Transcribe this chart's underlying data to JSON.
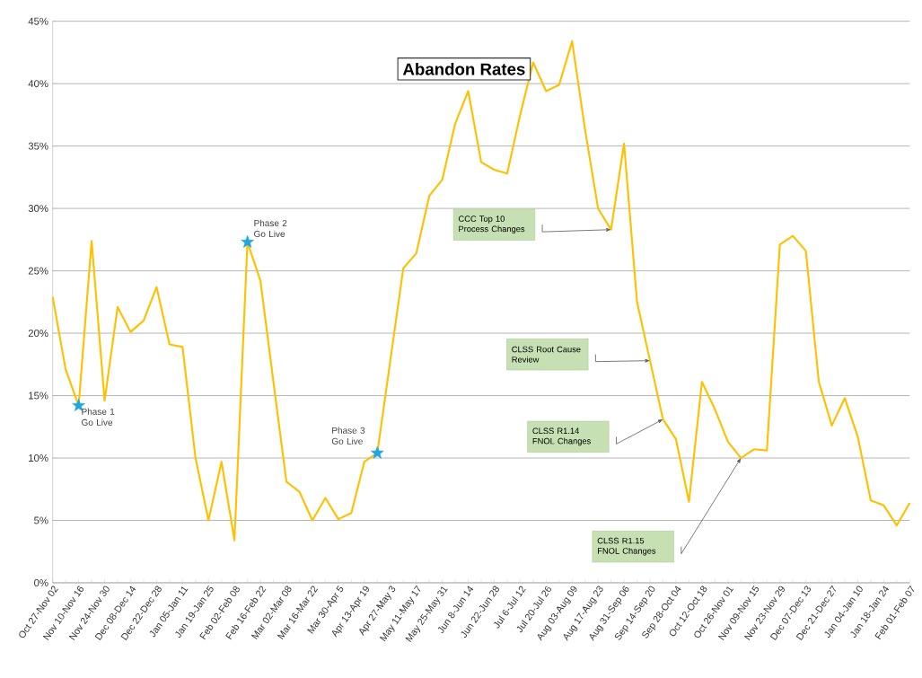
{
  "chart_data": {
    "type": "line",
    "title": "Abandon Rates",
    "categories": [
      "Oct 27-Nov 02",
      null,
      "Nov 10-Nov 16",
      null,
      "Nov 24-Nov 30",
      null,
      "Dec 08-Dec 14",
      null,
      "Dec 22-Dec 28",
      null,
      "Jan 05-Jan 11",
      null,
      "Jan 19-Jan 25",
      null,
      "Feb 02-Feb 08",
      null,
      "Feb 16-Feb 22",
      null,
      "Mar 02-Mar 08",
      null,
      "Mar 16-Mar 22",
      null,
      "Mar 30-Apr 5",
      null,
      "Apr 13-Apr 19",
      null,
      "Apr 27-May 3",
      null,
      "May 11-May 17",
      null,
      "May 25-May 31",
      null,
      "Jun 8-Jun 14",
      null,
      "Jun 22-Jun 28",
      null,
      "Jul 6-Jul 12",
      null,
      "Jul 20-Jul 26",
      null,
      "Aug 03-Aug 09",
      null,
      "Aug 17-Aug 23",
      null,
      "Aug 31-Sep 06",
      null,
      "Sep 14-Sep 20",
      null,
      "Sep 28-Oct 04",
      null,
      "Oct 12-Oct 18",
      null,
      "Oct 26-Nov 01",
      null,
      "Nov 09-Nov 15",
      null,
      "Nov 23-Nov 29",
      null,
      "Dec 07-Dec 13",
      null,
      "Dec 21-Dec 27",
      null,
      "Jan 04-Jan 10",
      null,
      "Jan 18-Jan 24",
      null,
      "Feb 01-Feb 07"
    ],
    "values": [
      22.9,
      17.1,
      14.2,
      27.4,
      14.6,
      22.1,
      20.1,
      21.0,
      23.7,
      19.1,
      18.9,
      10.0,
      5.0,
      9.7,
      3.4,
      27.3,
      24.2,
      16.1,
      8.1,
      7.3,
      5.0,
      6.8,
      5.1,
      5.6,
      9.7,
      10.4,
      17.8,
      25.2,
      26.4,
      31.0,
      32.3,
      36.8,
      39.4,
      33.7,
      33.1,
      32.8,
      37.5,
      41.7,
      39.4,
      39.9,
      43.4,
      36.3,
      30.0,
      28.3,
      35.2,
      22.5,
      17.8,
      13.1,
      11.5,
      6.5,
      16.1,
      13.9,
      11.3,
      10.0,
      10.7,
      10.6,
      27.1,
      27.8,
      26.6,
      16.1,
      12.6,
      14.8,
      11.7,
      6.6,
      6.2,
      4.6,
      6.4
    ],
    "color": "#ffc000",
    "ylim": [
      0,
      45
    ],
    "yticks": [
      {
        "value": 0,
        "label": "0%"
      },
      {
        "value": 5,
        "label": "5%"
      },
      {
        "value": 10,
        "label": "10%"
      },
      {
        "value": 15,
        "label": "15%"
      },
      {
        "value": 20,
        "label": "20%"
      },
      {
        "value": 25,
        "label": "25%"
      },
      {
        "value": 30,
        "label": "30%"
      },
      {
        "value": 35,
        "label": "35%"
      },
      {
        "value": 40,
        "label": "40%"
      },
      {
        "value": 45,
        "label": "45%"
      }
    ],
    "grid": "y",
    "annotations": [
      "Phase 1 Go Live",
      "Phase 2 Go Live",
      "Phase 3 Go Live",
      "CCC Top 10 Process Changes",
      "CLSS Root Cause Review",
      "CLSS R1.14 FNOL Changes",
      "CLSS R1.15 FNOL Changes"
    ]
  }
}
